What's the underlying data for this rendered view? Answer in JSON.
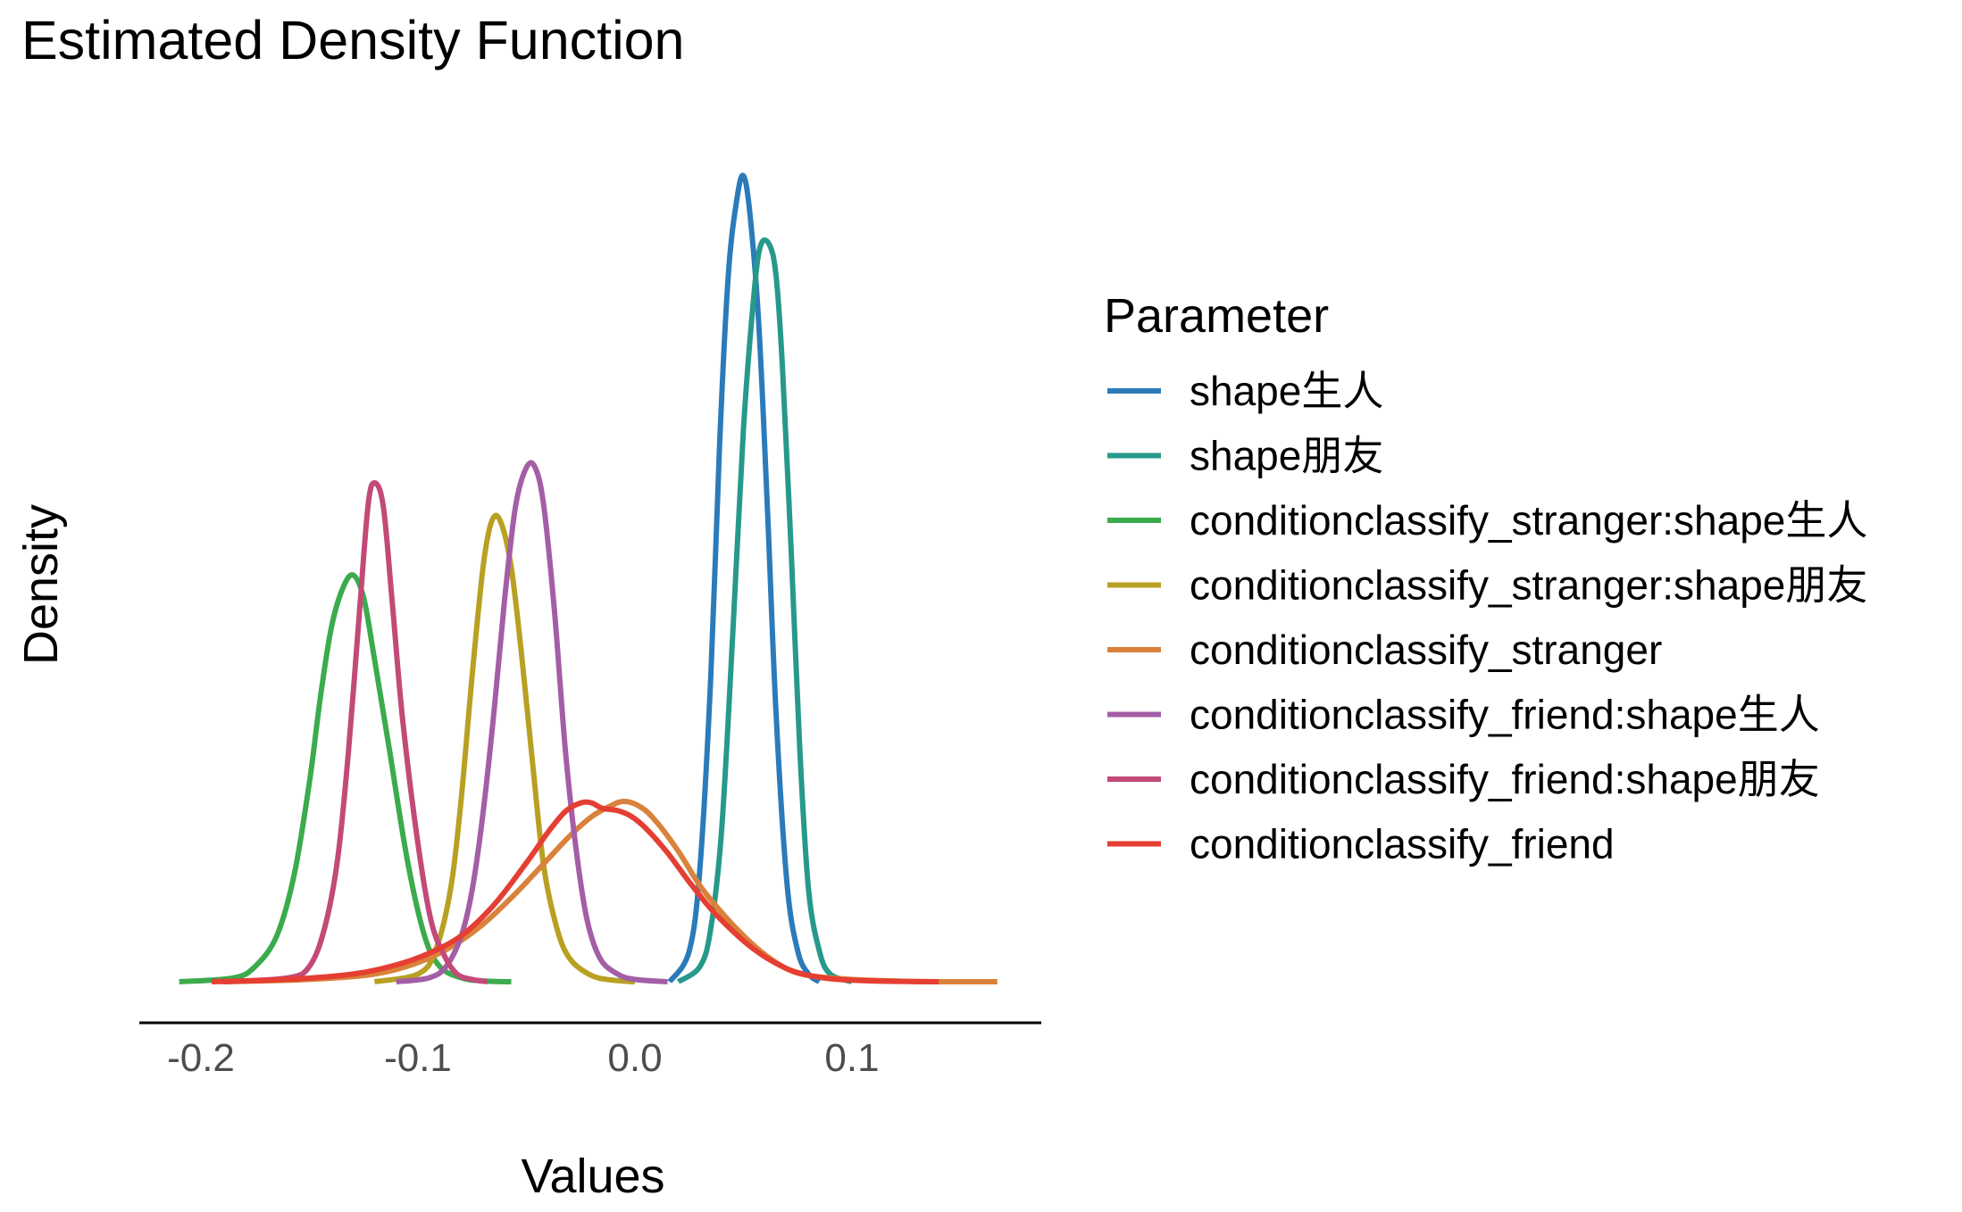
{
  "chart_data": {
    "type": "line",
    "title": "Estimated Density Function",
    "xlabel": "Values",
    "ylabel": "Density",
    "xlim": [
      -0.232,
      0.184
    ],
    "x_ticks": [
      -0.2,
      -0.1,
      0.0,
      0.1
    ],
    "x_tick_labels": [
      "-0.2",
      "-0.1",
      "0.0",
      "0.1"
    ],
    "y_ticks_visible": false,
    "grid": false,
    "legend": {
      "title": "Parameter",
      "placement": "right"
    },
    "series": [
      {
        "name": "shape生人",
        "color": "#2b7bba",
        "x": [
          0.016,
          0.025,
          0.03,
          0.035,
          0.039,
          0.043,
          0.047,
          0.05,
          0.053,
          0.057,
          0.061,
          0.065,
          0.07,
          0.075,
          0.08,
          0.085
        ],
        "y": [
          0.0,
          0.04,
          0.15,
          0.4,
          0.7,
          0.92,
          1.02,
          1.05,
          1.0,
          0.86,
          0.62,
          0.35,
          0.13,
          0.04,
          0.01,
          0.0
        ]
      },
      {
        "name": "shape朋友",
        "color": "#26998a",
        "x": [
          0.02,
          0.03,
          0.035,
          0.04,
          0.045,
          0.05,
          0.055,
          0.058,
          0.062,
          0.065,
          0.068,
          0.072,
          0.076,
          0.08,
          0.085,
          0.09,
          0.1
        ],
        "y": [
          0.0,
          0.02,
          0.07,
          0.2,
          0.45,
          0.72,
          0.9,
          0.96,
          0.96,
          0.92,
          0.8,
          0.56,
          0.3,
          0.12,
          0.04,
          0.01,
          0.0
        ]
      },
      {
        "name": "conditionclassify_stranger:shape生人",
        "color": "#3bab4d",
        "x": [
          -0.21,
          -0.185,
          -0.175,
          -0.165,
          -0.157,
          -0.15,
          -0.145,
          -0.14,
          -0.135,
          -0.13,
          -0.125,
          -0.12,
          -0.113,
          -0.105,
          -0.097,
          -0.09,
          -0.08,
          -0.07,
          -0.057
        ],
        "y": [
          0.0,
          0.005,
          0.02,
          0.06,
          0.14,
          0.26,
          0.37,
          0.46,
          0.51,
          0.53,
          0.5,
          0.42,
          0.3,
          0.16,
          0.06,
          0.02,
          0.005,
          0.001,
          0.0
        ]
      },
      {
        "name": "conditionclassify_stranger:shape朋友",
        "color": "#b8a023",
        "x": [
          -0.12,
          -0.1,
          -0.092,
          -0.085,
          -0.08,
          -0.075,
          -0.07,
          -0.066,
          -0.062,
          -0.057,
          -0.052,
          -0.047,
          -0.042,
          -0.036,
          -0.03,
          -0.02,
          -0.01,
          0.0
        ],
        "y": [
          0.0,
          0.01,
          0.04,
          0.12,
          0.24,
          0.4,
          0.54,
          0.6,
          0.6,
          0.54,
          0.42,
          0.28,
          0.15,
          0.07,
          0.03,
          0.008,
          0.002,
          0.0
        ]
      },
      {
        "name": "conditionclassify_stranger",
        "color": "#d9823b",
        "x": [
          -0.19,
          -0.15,
          -0.12,
          -0.1,
          -0.085,
          -0.07,
          -0.055,
          -0.04,
          -0.03,
          -0.02,
          -0.012,
          -0.005,
          0.003,
          0.01,
          0.02,
          0.03,
          0.04,
          0.05,
          0.06,
          0.07,
          0.08,
          0.1,
          0.12,
          0.14,
          0.167
        ],
        "y": [
          0.0,
          0.003,
          0.01,
          0.025,
          0.045,
          0.075,
          0.115,
          0.16,
          0.19,
          0.215,
          0.228,
          0.235,
          0.227,
          0.208,
          0.17,
          0.125,
          0.09,
          0.06,
          0.035,
          0.017,
          0.008,
          0.003,
          0.001,
          0.0,
          0.0
        ]
      },
      {
        "name": "conditionclassify_friend:shape生人",
        "color": "#a35ea6",
        "x": [
          -0.11,
          -0.095,
          -0.087,
          -0.08,
          -0.075,
          -0.07,
          -0.065,
          -0.06,
          -0.055,
          -0.05,
          -0.046,
          -0.042,
          -0.037,
          -0.032,
          -0.027,
          -0.022,
          -0.016,
          -0.008,
          0.0,
          0.015
        ],
        "y": [
          0.0,
          0.005,
          0.02,
          0.06,
          0.12,
          0.22,
          0.35,
          0.5,
          0.62,
          0.67,
          0.67,
          0.62,
          0.48,
          0.3,
          0.17,
          0.08,
          0.03,
          0.01,
          0.003,
          0.0
        ]
      },
      {
        "name": "conditionclassify_friend:shape朋友",
        "color": "#c24a78",
        "x": [
          -0.19,
          -0.16,
          -0.15,
          -0.143,
          -0.137,
          -0.132,
          -0.127,
          -0.123,
          -0.12,
          -0.116,
          -0.112,
          -0.107,
          -0.1,
          -0.094,
          -0.088,
          -0.082,
          -0.075,
          -0.068
        ],
        "y": [
          0.0,
          0.005,
          0.02,
          0.07,
          0.16,
          0.3,
          0.48,
          0.62,
          0.65,
          0.62,
          0.5,
          0.34,
          0.18,
          0.08,
          0.035,
          0.01,
          0.003,
          0.0
        ]
      },
      {
        "name": "conditionclassify_friend",
        "color": "#e53e32",
        "x": [
          -0.195,
          -0.16,
          -0.13,
          -0.11,
          -0.095,
          -0.08,
          -0.065,
          -0.05,
          -0.04,
          -0.032,
          -0.025,
          -0.02,
          -0.015,
          -0.008,
          -0.002,
          0.005,
          0.015,
          0.025,
          0.035,
          0.045,
          0.055,
          0.065,
          0.075,
          0.09,
          0.11,
          0.14
        ],
        "y": [
          0.0,
          0.003,
          0.01,
          0.022,
          0.037,
          0.06,
          0.1,
          0.155,
          0.195,
          0.222,
          0.233,
          0.233,
          0.226,
          0.223,
          0.216,
          0.2,
          0.168,
          0.13,
          0.095,
          0.066,
          0.042,
          0.024,
          0.012,
          0.004,
          0.001,
          0.0
        ]
      }
    ]
  }
}
